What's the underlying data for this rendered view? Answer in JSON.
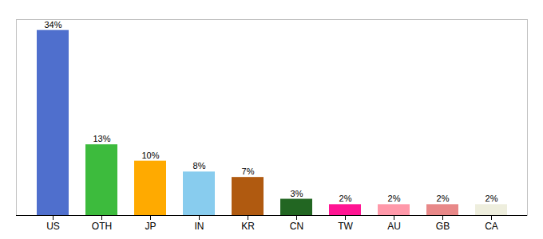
{
  "chart_data": {
    "type": "bar",
    "categories": [
      "US",
      "OTH",
      "JP",
      "IN",
      "KR",
      "CN",
      "TW",
      "AU",
      "GB",
      "CA"
    ],
    "values": [
      34,
      13,
      10,
      8,
      7,
      3,
      2,
      2,
      2,
      2
    ],
    "value_labels": [
      "34%",
      "13%",
      "10%",
      "8%",
      "7%",
      "3%",
      "2%",
      "2%",
      "2%",
      "2%"
    ],
    "colors": [
      "#4f6fcd",
      "#3dbb3d",
      "#ffaa00",
      "#88ccee",
      "#b05a10",
      "#226622",
      "#ff1493",
      "#ff99aa",
      "#e88888",
      "#eeeedd"
    ],
    "ylim": [
      0,
      36
    ],
    "data_labels": true,
    "tick_labels": "x",
    "grid": false
  }
}
